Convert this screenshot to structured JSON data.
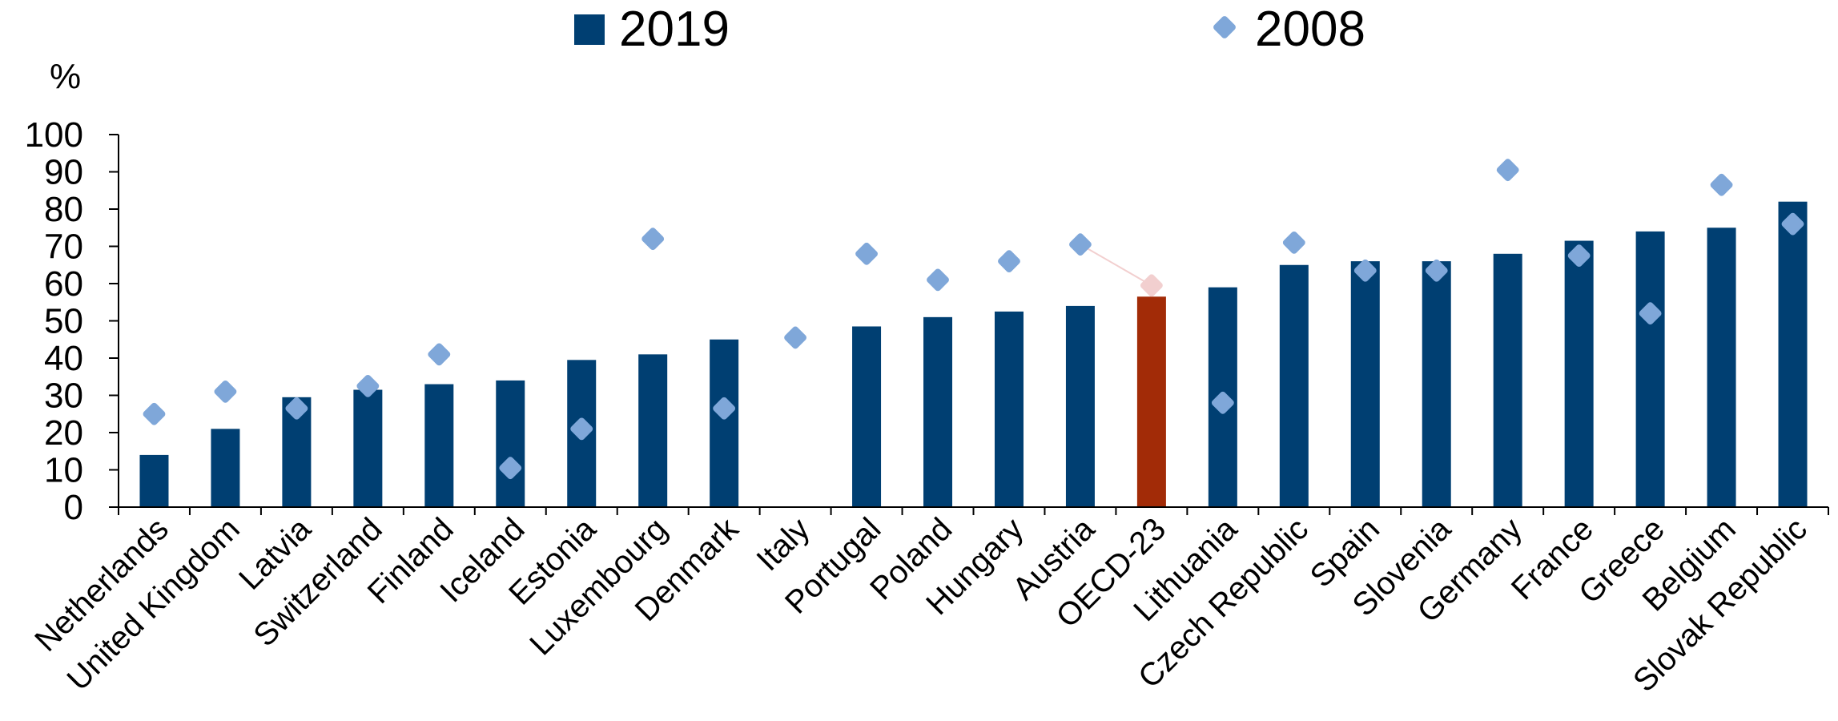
{
  "chart_data": {
    "type": "bar",
    "title": "",
    "ylabel": "%",
    "xlabel": "",
    "ylim": [
      0,
      100
    ],
    "yticks": [
      0,
      10,
      20,
      30,
      40,
      50,
      60,
      70,
      80,
      90,
      100
    ],
    "grid": false,
    "legend_position": "top",
    "categories": [
      "Netherlands",
      "United Kingdom",
      "Latvia",
      "Switzerland",
      "Finland",
      "Iceland",
      "Estonia",
      "Luxembourg",
      "Denmark",
      "Italy",
      "Portugal",
      "Poland",
      "Hungary",
      "Austria",
      "OECD-23",
      "Lithuania",
      "Czech Republic",
      "Spain",
      "Slovenia",
      "Germany",
      "France",
      "Greece",
      "Belgium",
      "Slovak Republic"
    ],
    "highlight_category": "OECD-23",
    "series": [
      {
        "name": "2019",
        "kind": "bar",
        "color": "#003f72",
        "highlight_color": "#a22b07",
        "values": [
          14,
          21,
          29.5,
          31.5,
          33,
          34,
          39.5,
          41,
          45,
          null,
          48.5,
          51,
          52.5,
          54,
          56.5,
          59,
          65,
          66,
          66,
          68,
          71.5,
          74,
          75,
          82
        ]
      },
      {
        "name": "2008",
        "kind": "marker",
        "color": "#7fa7d9",
        "highlight_color": "#f2cfcf",
        "values": [
          25,
          31,
          26.5,
          32.5,
          41,
          10.5,
          21,
          72,
          26.5,
          45.5,
          68,
          61,
          66,
          70.5,
          59.5,
          28,
          71,
          63.5,
          63.5,
          90.5,
          67.5,
          52,
          86.5,
          76
        ]
      }
    ]
  }
}
